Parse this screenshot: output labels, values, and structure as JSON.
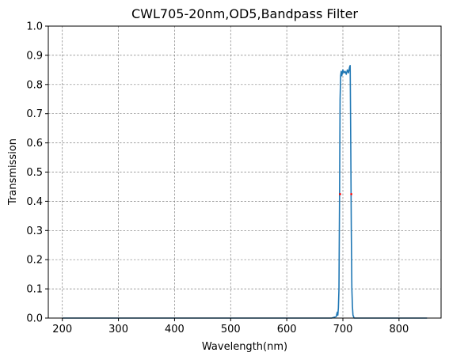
{
  "chart_data": {
    "type": "line",
    "title": "CWL705-20nm,OD5,Bandpass Filter",
    "xlabel": "Wavelength(nm)",
    "ylabel": "Transmission",
    "xlim": [
      175,
      875
    ],
    "ylim": [
      0.0,
      1.0
    ],
    "x_ticks": [
      200,
      300,
      400,
      500,
      600,
      700,
      800
    ],
    "y_ticks": [
      0.0,
      0.1,
      0.2,
      0.3,
      0.4,
      0.5,
      0.6,
      0.7,
      0.8,
      0.9,
      1.0
    ],
    "x_tick_labels": [
      "200",
      "300",
      "400",
      "500",
      "600",
      "700",
      "800"
    ],
    "y_tick_labels": [
      "0.0",
      "0.1",
      "0.2",
      "0.3",
      "0.4",
      "0.5",
      "0.6",
      "0.7",
      "0.8",
      "0.9",
      "1.0"
    ],
    "grid": true,
    "series": [
      {
        "color": "#1f77b4",
        "x": [
          200,
          300,
          400,
          500,
          600,
          680,
          688,
          690,
          691,
          692,
          693,
          694,
          695,
          696,
          697,
          698,
          700,
          702,
          704,
          706,
          708,
          710,
          712,
          713,
          714,
          715,
          716,
          717,
          718,
          720,
          730,
          800,
          850
        ],
        "y": [
          0.0,
          0.0,
          0.0,
          0.0,
          0.0,
          0.0,
          0.005,
          0.02,
          0.01,
          0.035,
          0.1,
          0.4,
          0.75,
          0.83,
          0.845,
          0.83,
          0.85,
          0.84,
          0.845,
          0.835,
          0.85,
          0.84,
          0.86,
          0.865,
          0.6,
          0.3,
          0.1,
          0.04,
          0.01,
          0.0,
          0.0,
          0.0,
          0.0
        ]
      }
    ],
    "markers": [
      {
        "color": "#ff0000",
        "x": [
          695,
          715
        ],
        "y": [
          0.4245,
          0.4245
        ]
      }
    ]
  }
}
